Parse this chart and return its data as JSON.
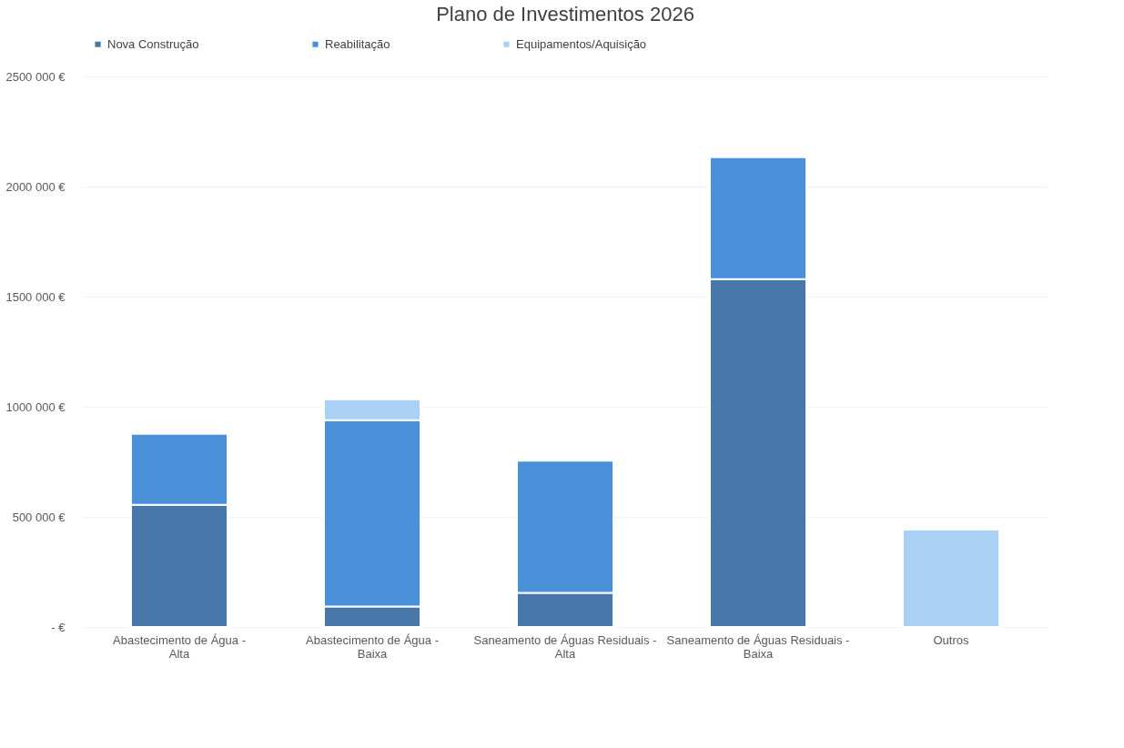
{
  "chart_data": {
    "type": "bar",
    "title": "Plano de Investimentos 2026",
    "stacked": true,
    "legend": "top",
    "grid": "y",
    "categories": [
      "Abastecimento de Água - Alta",
      "Abastecimento de Água - Baixa",
      "Saneamento de Águas Residuais - Alta",
      "Saneamento de Águas Residuais - Baixa",
      "Outros"
    ],
    "series": [
      {
        "name": "Nova Construção",
        "color": "#4677a8",
        "values": [
          555000,
          93000,
          155000,
          1580000,
          null
        ]
      },
      {
        "name": "Reabilitação",
        "color": "#4a90d8",
        "values": [
          322000,
          846000,
          600000,
          553000,
          null
        ]
      },
      {
        "name": "Equipamentos/Aquisição",
        "color": "#a9d1f5",
        "values": [
          null,
          95000,
          null,
          null,
          442000
        ]
      }
    ],
    "ylim": [
      0,
      2500000
    ],
    "yticks": [
      {
        "value": 0,
        "label": "- €"
      },
      {
        "value": 500000,
        "label": "500 000 €"
      },
      {
        "value": 1000000,
        "label": "1000 000 €"
      },
      {
        "value": 1500000,
        "label": "1500 000 €"
      },
      {
        "value": 2000000,
        "label": "2000 000 €"
      },
      {
        "value": 2500000,
        "label": "2500 000 €"
      }
    ]
  }
}
